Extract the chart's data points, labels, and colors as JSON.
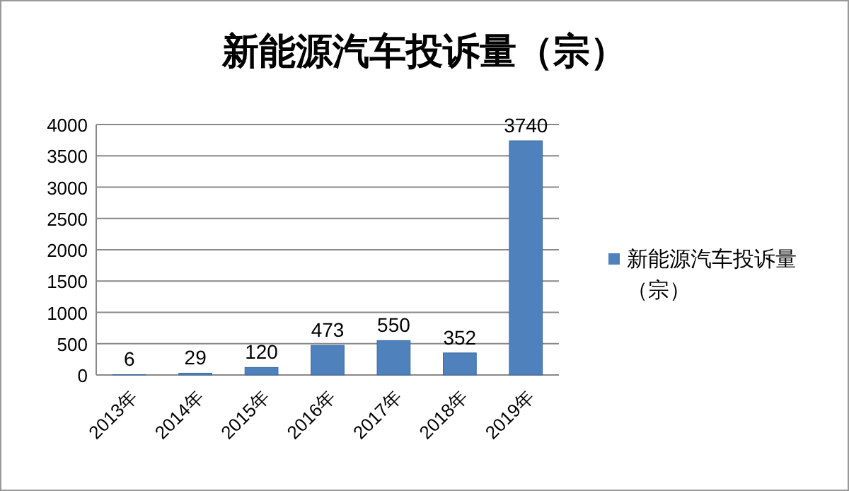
{
  "chart_data": {
    "type": "bar",
    "title": "新能源汽车投诉量（宗）",
    "categories": [
      "2013年",
      "2014年",
      "2015年",
      "2016年",
      "2017年",
      "2018年",
      "2019年"
    ],
    "series": [
      {
        "name": "新能源汽车投诉量（宗）",
        "color": "#4f81bd",
        "values": [
          6,
          29,
          120,
          473,
          550,
          352,
          3740
        ]
      }
    ],
    "ylim": [
      0,
      4000
    ],
    "yticks": [
      0,
      500,
      1000,
      1500,
      2000,
      2500,
      3000,
      3500,
      4000
    ],
    "grid": "y",
    "legend": "right",
    "data_labels": true
  }
}
